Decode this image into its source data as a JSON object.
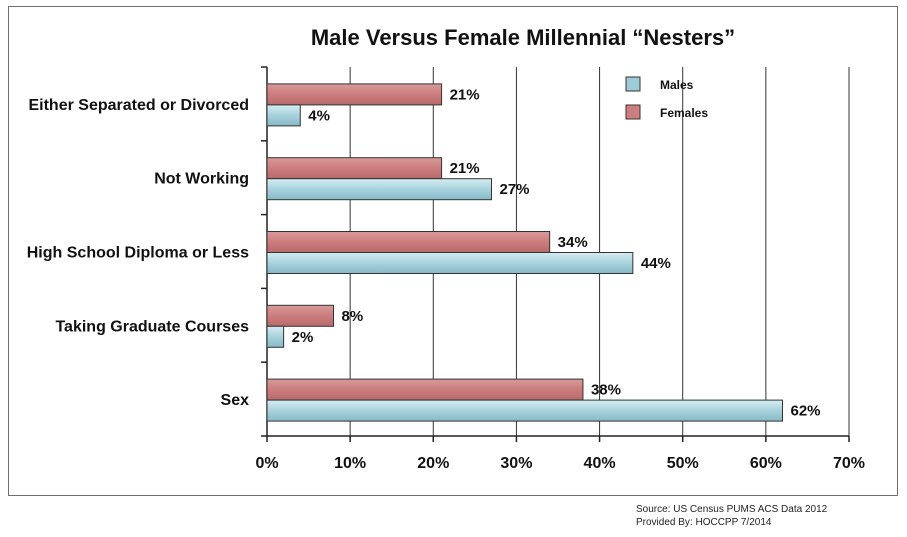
{
  "chart_data": {
    "type": "bar",
    "orientation": "horizontal",
    "title": "Male Versus Female Millennial  “Nesters”",
    "categories": [
      "Either Separated or Divorced",
      "Not Working",
      "High School Diploma or Less",
      "Taking Graduate Courses",
      "Sex"
    ],
    "series": [
      {
        "name": "Females",
        "values": [
          21,
          21,
          34,
          8,
          38
        ],
        "labels": [
          "21%",
          "21%",
          "34%",
          "8%",
          "38%"
        ],
        "color": "#cd7f7f"
      },
      {
        "name": "Males",
        "values": [
          4,
          27,
          44,
          2,
          62
        ],
        "labels": [
          "4%",
          "27%",
          "44%",
          "2%",
          "62%"
        ],
        "color": "#9ecbd6"
      }
    ],
    "xlim": [
      0,
      70
    ],
    "xticks": [
      0,
      10,
      20,
      30,
      40,
      50,
      60,
      70
    ],
    "xtick_labels": [
      "0%",
      "10%",
      "20%",
      "30%",
      "40%",
      "50%",
      "60%",
      "70%"
    ],
    "grid": "vertical",
    "legend": {
      "position": "top-right",
      "order": [
        "Males",
        "Females"
      ]
    },
    "xlabel": "",
    "ylabel": ""
  },
  "footer": {
    "source_line": "Source: US Census PUMS ACS Data 2012",
    "provided_line": "Provided By: HOCCPP  7/2014"
  }
}
